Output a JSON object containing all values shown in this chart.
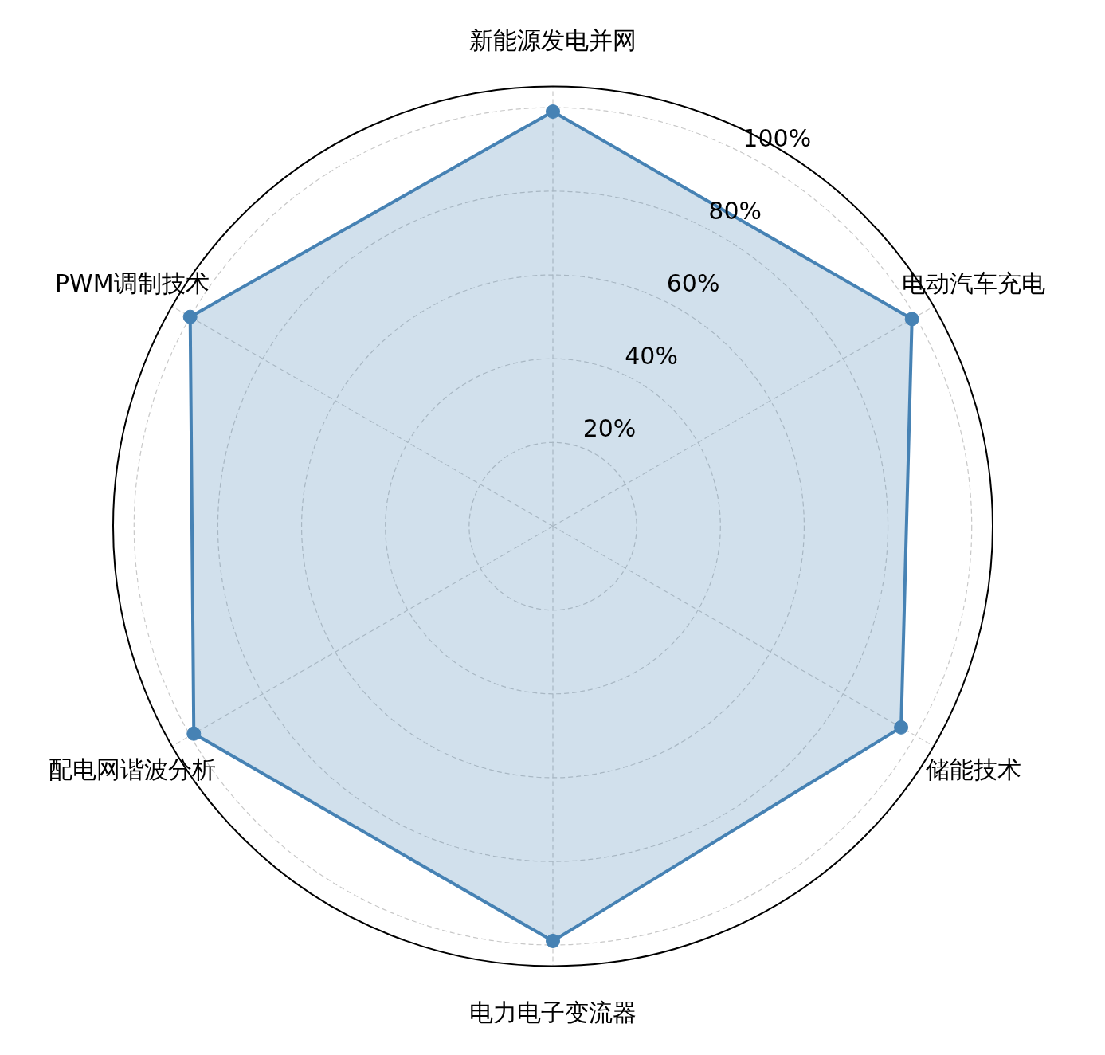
{
  "chart_data": {
    "type": "radar",
    "categories": [
      "新能源发电并网",
      "电动汽车充电",
      "储能技术",
      "电力电子变流器",
      "配电网谐波分析",
      "PWM调制技术"
    ],
    "series": [
      {
        "color": "#4682b4",
        "values": [
          99,
          99,
          96,
          99,
          99,
          100
        ]
      }
    ],
    "ylim": [
      0,
      105
    ],
    "yticks": [
      {
        "value": 20,
        "label": "20%"
      },
      {
        "value": 40,
        "label": "40%"
      },
      {
        "value": 60,
        "label": "60%"
      },
      {
        "value": 80,
        "label": "80%"
      },
      {
        "value": 100,
        "label": "100%"
      }
    ],
    "grid": true,
    "marker": "circle",
    "line_style": "solid"
  }
}
